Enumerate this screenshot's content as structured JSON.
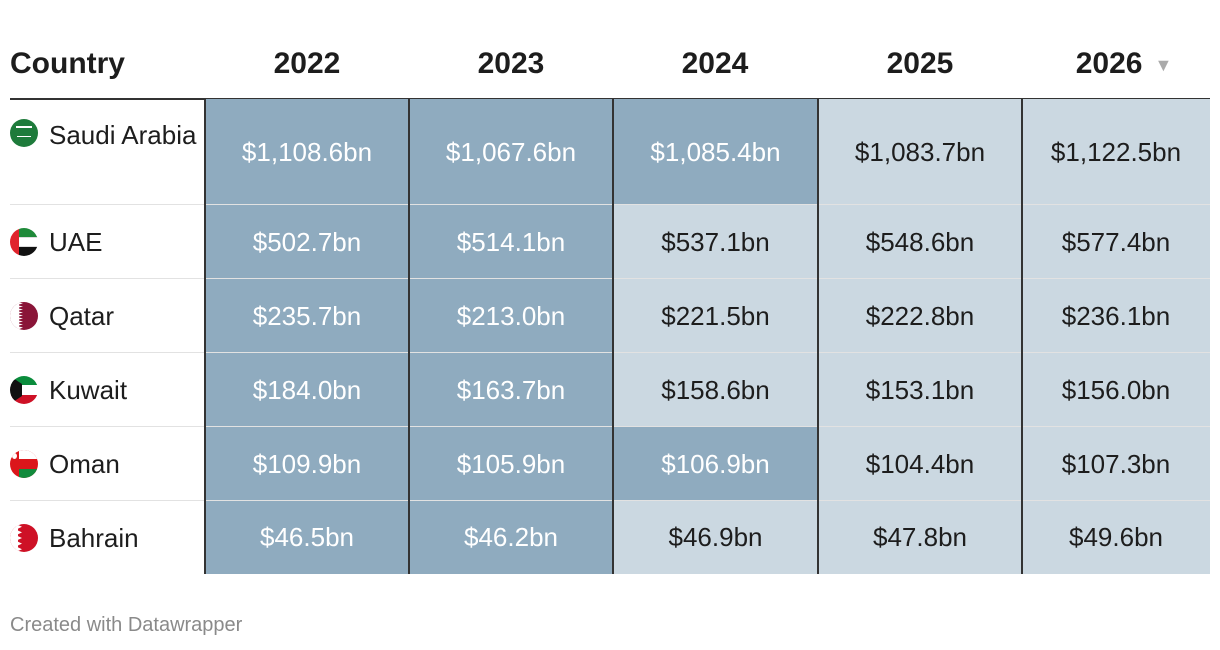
{
  "chart_data": {
    "type": "table",
    "columns": [
      "Country",
      "2022",
      "2023",
      "2024",
      "2025",
      "2026"
    ],
    "sort_indicator": "▼",
    "rows": [
      {
        "country": "Saudi Arabia",
        "flag": "saudi-arabia-flag-icon",
        "values": [
          "$1,108.6bn",
          "$1,067.6bn",
          "$1,085.4bn",
          "$1,083.7bn",
          "$1,122.5bn"
        ],
        "shade": [
          "dark",
          "dark",
          "dark",
          "light",
          "light"
        ]
      },
      {
        "country": "UAE",
        "flag": "uae-flag-icon",
        "values": [
          "$502.7bn",
          "$514.1bn",
          "$537.1bn",
          "$548.6bn",
          "$577.4bn"
        ],
        "shade": [
          "dark",
          "dark",
          "light",
          "light",
          "light"
        ]
      },
      {
        "country": "Qatar",
        "flag": "qatar-flag-icon",
        "values": [
          "$235.7bn",
          "$213.0bn",
          "$221.5bn",
          "$222.8bn",
          "$236.1bn"
        ],
        "shade": [
          "dark",
          "dark",
          "light",
          "light",
          "light"
        ]
      },
      {
        "country": "Kuwait",
        "flag": "kuwait-flag-icon",
        "values": [
          "$184.0bn",
          "$163.7bn",
          "$158.6bn",
          "$153.1bn",
          "$156.0bn"
        ],
        "shade": [
          "dark",
          "dark",
          "light",
          "light",
          "light"
        ]
      },
      {
        "country": "Oman",
        "flag": "oman-flag-icon",
        "values": [
          "$109.9bn",
          "$105.9bn",
          "$106.9bn",
          "$104.4bn",
          "$107.3bn"
        ],
        "shade": [
          "dark",
          "dark",
          "dark",
          "light",
          "light"
        ]
      },
      {
        "country": "Bahrain",
        "flag": "bahrain-flag-icon",
        "values": [
          "$46.5bn",
          "$46.2bn",
          "$46.9bn",
          "$47.8bn",
          "$49.6bn"
        ],
        "shade": [
          "dark",
          "dark",
          "light",
          "light",
          "light"
        ]
      }
    ],
    "colors": {
      "dark_cell": "#8fabbf",
      "light_cell": "#cbd8e1",
      "text_dark": "#1d1d1d",
      "text_light": "#ffffff"
    }
  },
  "footer": {
    "credit": "Created with Datawrapper"
  }
}
